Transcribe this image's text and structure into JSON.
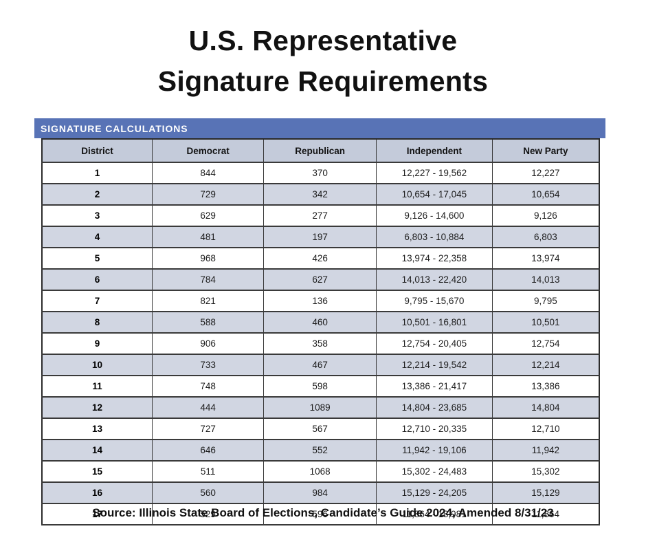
{
  "page": {
    "title_line1": "U.S. Representative",
    "title_line2": "Signature Requirements",
    "source": "Source: Illinois State Board of Elections, Candidate’s Guide 2024, Amended 8/31/23"
  },
  "band": {
    "label": "SIGNATURE CALCULATIONS"
  },
  "colors": {
    "band_bg": "#5873B6",
    "header_bg": "#C4CBDA",
    "row_alt_bg": "#D1D6E2",
    "row_bg": "#FFFFFF",
    "border": "#3a3a3a"
  },
  "table": {
    "columns": [
      "District",
      "Democrat",
      "Republican",
      "Independent",
      "New Party"
    ],
    "rows": [
      [
        "1",
        "844",
        "370",
        "12,227 - 19,562",
        "12,227"
      ],
      [
        "2",
        "729",
        "342",
        "10,654 - 17,045",
        "10,654"
      ],
      [
        "3",
        "629",
        "277",
        "9,126 - 14,600",
        "9,126"
      ],
      [
        "4",
        "481",
        "197",
        "6,803 - 10,884",
        "6,803"
      ],
      [
        "5",
        "968",
        "426",
        "13,974 - 22,358",
        "13,974"
      ],
      [
        "6",
        "784",
        "627",
        "14,013 - 22,420",
        "14,013"
      ],
      [
        "7",
        "821",
        "136",
        "9,795 - 15,670",
        "9,795"
      ],
      [
        "8",
        "588",
        "460",
        "10,501 - 16,801",
        "10,501"
      ],
      [
        "9",
        "906",
        "358",
        "12,754 - 20,405",
        "12,754"
      ],
      [
        "10",
        "733",
        "467",
        "12,214 - 19,542",
        "12,214"
      ],
      [
        "11",
        "748",
        "598",
        "13,386 - 21,417",
        "13,386"
      ],
      [
        "12",
        "444",
        "1089",
        "14,804 - 23,685",
        "14,804"
      ],
      [
        "13",
        "727",
        "567",
        "12,710 - 20,335",
        "12,710"
      ],
      [
        "14",
        "646",
        "552",
        "11,942 - 19,106",
        "11,942"
      ],
      [
        "15",
        "511",
        "1068",
        "15,302 - 24,483",
        "15,302"
      ],
      [
        "16",
        "560",
        "984",
        "15,129 - 24,205",
        "15,129"
      ],
      [
        "17",
        "529",
        "596",
        "11,864 - 18,981",
        "11,864"
      ]
    ]
  }
}
